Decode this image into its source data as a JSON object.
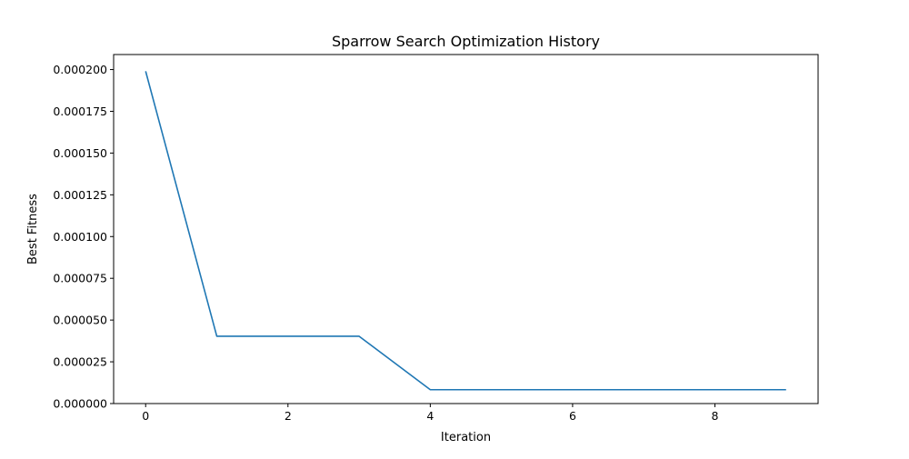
{
  "chart_data": {
    "type": "line",
    "title": "Sparrow Search Optimization History",
    "xlabel": "Iteration",
    "ylabel": "Best Fitness",
    "xlim": [
      -0.45,
      9.45
    ],
    "ylim": [
      0.0,
      0.000209
    ],
    "x_ticks": [
      0,
      2,
      4,
      6,
      8
    ],
    "x_tick_labels": [
      "0",
      "2",
      "4",
      "6",
      "8"
    ],
    "y_ticks": [
      0.0,
      2.5e-05,
      5e-05,
      7.5e-05,
      0.0001,
      0.000125,
      0.00015,
      0.000175,
      0.0002
    ],
    "y_tick_labels": [
      "0.000000",
      "0.000025",
      "0.000050",
      "0.000075",
      "0.000100",
      "0.000125",
      "0.000150",
      "0.000175",
      "0.000200"
    ],
    "grid": false,
    "series": [
      {
        "color": "#1f77b4",
        "x": [
          0,
          1,
          2,
          3,
          4,
          5,
          6,
          7,
          8,
          9
        ],
        "values": [
          0.000199,
          4.03e-05,
          4.03e-05,
          4.03e-05,
          8.3e-06,
          8.3e-06,
          8.3e-06,
          8.3e-06,
          8.3e-06,
          8.3e-06
        ]
      }
    ]
  }
}
